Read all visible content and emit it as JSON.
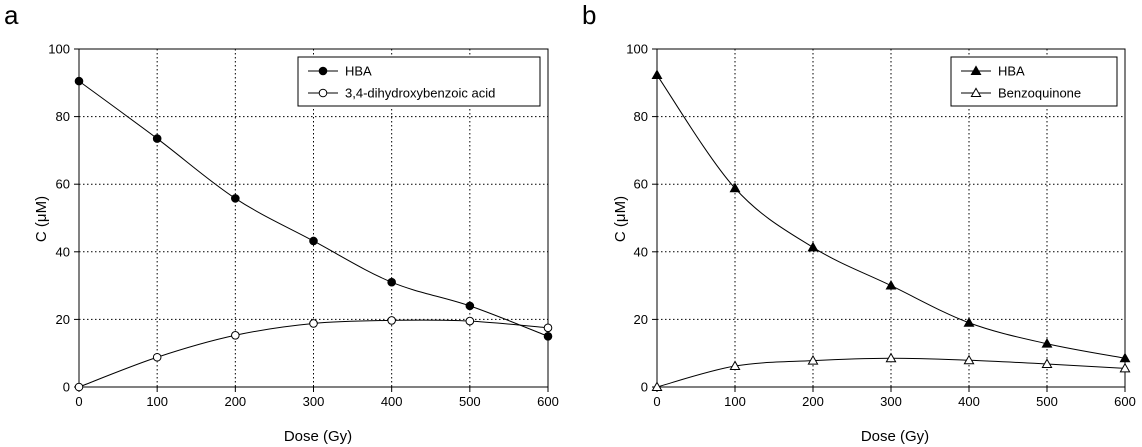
{
  "chart_data": [
    {
      "type": "line",
      "panel_label": "a",
      "xlabel": "Dose (Gy)",
      "ylabel": "C (μM)",
      "xlim": [
        0,
        600
      ],
      "ylim": [
        0,
        100
      ],
      "xticks": [
        0,
        100,
        200,
        300,
        400,
        500,
        600
      ],
      "yticks": [
        0,
        20,
        40,
        60,
        80,
        100
      ],
      "grid": true,
      "legend_position": "top-right",
      "x": [
        0,
        100,
        200,
        300,
        400,
        500,
        600
      ],
      "series": [
        {
          "name": "HBA",
          "marker": "filled-circle",
          "values": [
            90.5,
            73.5,
            55.8,
            43.2,
            31,
            24,
            15
          ]
        },
        {
          "name": "3,4-dihydroxybenzoic acid",
          "marker": "open-circle",
          "values": [
            0,
            8.8,
            15.3,
            18.8,
            19.7,
            19.5,
            17.5
          ]
        }
      ]
    },
    {
      "type": "line",
      "panel_label": "b",
      "xlabel": "Dose (Gy)",
      "ylabel": "C (μM)",
      "xlim": [
        0,
        600
      ],
      "ylim": [
        0,
        100
      ],
      "xticks": [
        0,
        100,
        200,
        300,
        400,
        500,
        600
      ],
      "yticks": [
        0,
        20,
        40,
        60,
        80,
        100
      ],
      "grid": true,
      "legend_position": "top-right",
      "x": [
        0,
        100,
        200,
        300,
        400,
        500,
        600
      ],
      "series": [
        {
          "name": "HBA",
          "marker": "filled-triangle",
          "values": [
            92.3,
            58.8,
            41.3,
            30,
            19,
            12.8,
            8.5
          ]
        },
        {
          "name": "Benzoquinone",
          "marker": "open-triangle",
          "values": [
            0,
            6.2,
            7.8,
            8.5,
            7.9,
            6.8,
            5.5
          ]
        }
      ]
    }
  ]
}
